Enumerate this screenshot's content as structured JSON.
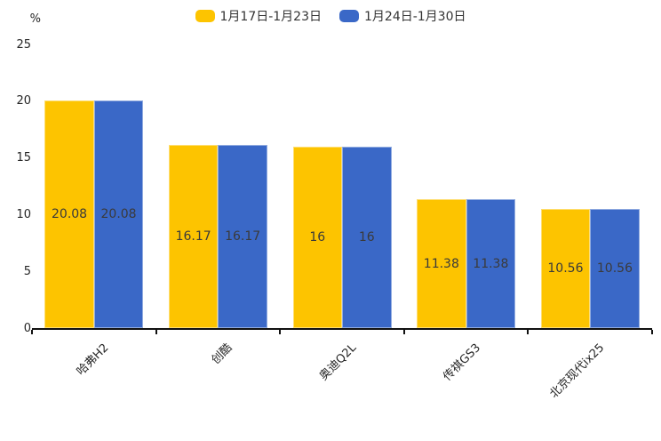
{
  "chart_data": {
    "type": "bar",
    "title": "",
    "legend_position": "top",
    "grid": false,
    "categories": [
      "哈弗H2",
      "创酷",
      "奥迪Q2L",
      "传祺GS3",
      "北京现代ix25"
    ],
    "series": [
      {
        "name": "1月17日-1月23日",
        "color": "#FDC400",
        "values": [
          20.08,
          16.17,
          16,
          11.38,
          10.56
        ]
      },
      {
        "name": "1月24日-1月30日",
        "color": "#3A68C7",
        "values": [
          20.08,
          16.17,
          16,
          11.38,
          10.56
        ]
      }
    ],
    "y_axis": {
      "unit_label": "%",
      "ticks": [
        25,
        20,
        15,
        10,
        5,
        0
      ],
      "min": 0,
      "max": 25
    },
    "value_label_color": "#3a3a3a",
    "axis_color": "#111111"
  }
}
